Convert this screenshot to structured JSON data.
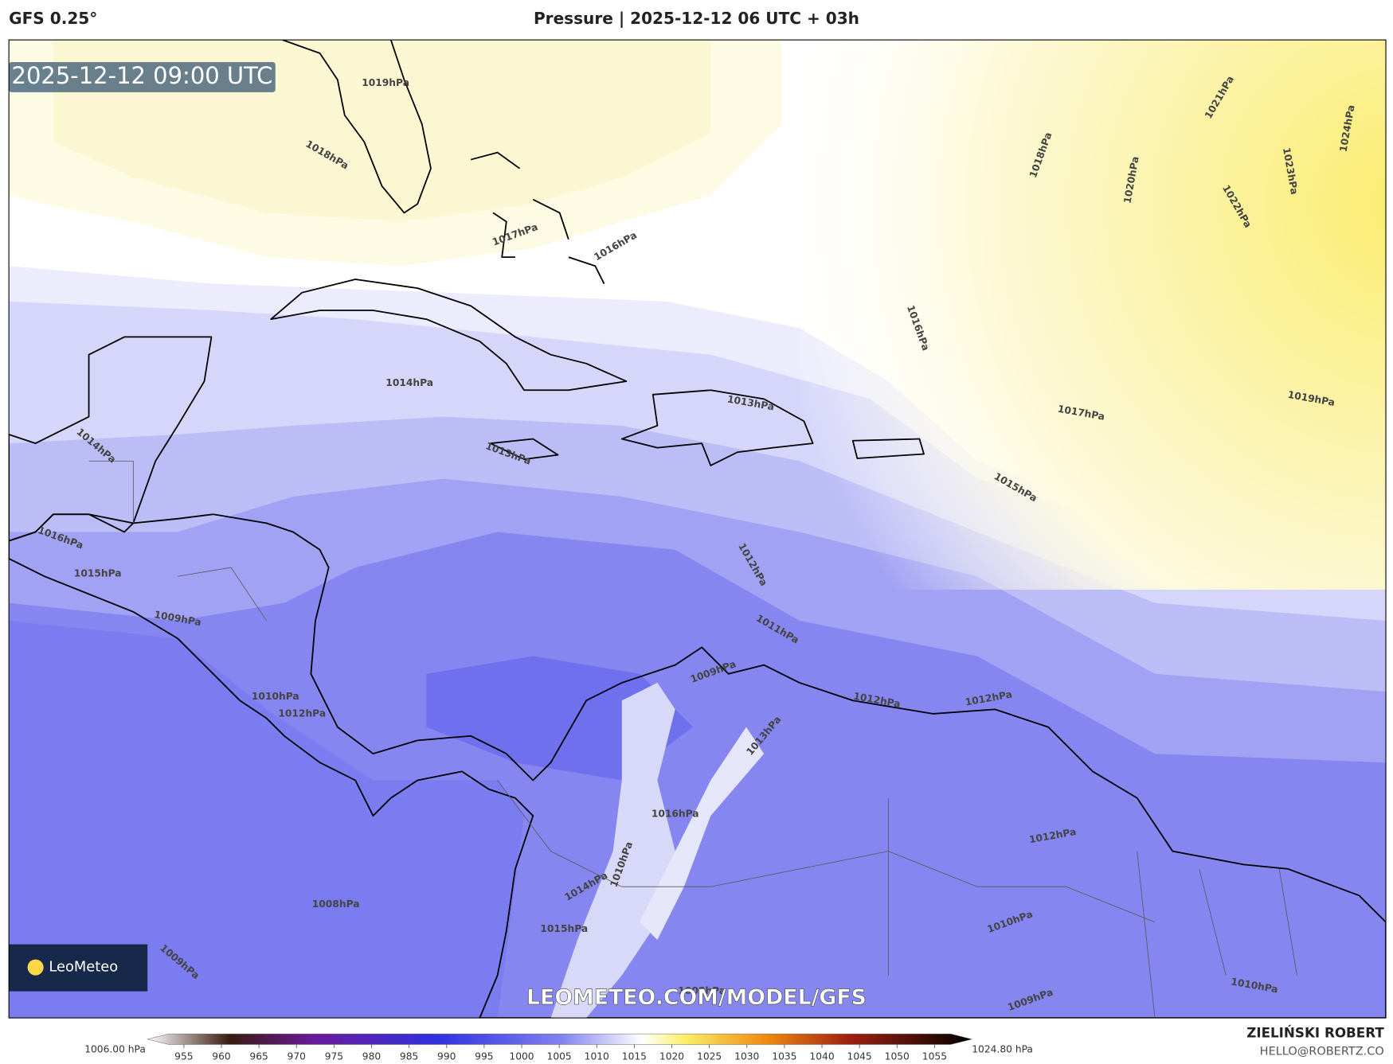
{
  "header": {
    "model": "GFS 0.25°",
    "title": "Pressure | 2025-12-12 06 UTC + 03h"
  },
  "map": {
    "timestamp": "2025-12-12 09:00 UTC",
    "watermark": "LEOMETEO.COM/MODEL/GFS",
    "logo": "LeoMeteo",
    "contour_labels": [
      "1019hPa",
      "1018hPa",
      "1017hPa",
      "1016hPa",
      "1014hPa",
      "1014hPa",
      "1013hPa",
      "1013hPa",
      "1016hPa",
      "1015hPa",
      "1009hPa",
      "1010hPa",
      "1012hPa",
      "1012hPa",
      "1011hPa",
      "1009hPa",
      "1012hPa",
      "1012hPa",
      "1013hPa",
      "1012hPa",
      "1010hPa",
      "1008hPa",
      "1009hPa",
      "1010hPa",
      "1009hPa",
      "1016hPa",
      "1017hPa",
      "1018hPa",
      "1020hPa",
      "1021hPa",
      "1022hPa",
      "1023hPa",
      "1024hPa",
      "1019hPa",
      "1015hPa",
      "1015hPa",
      "1014hPa",
      "1010hPa",
      "1016hPa",
      "1008hPa"
    ]
  },
  "colorbar": {
    "min_label": "1006.00 hPa",
    "max_label": "1024.80 hPa",
    "ticks": [
      955,
      960,
      965,
      970,
      975,
      980,
      985,
      990,
      995,
      1000,
      1005,
      1010,
      1015,
      1020,
      1025,
      1030,
      1035,
      1040,
      1045,
      1050,
      1055
    ]
  },
  "footer": {
    "author": "ZIELIŃSKI ROBERT",
    "email": "HELLO@ROBERTZ.CO"
  }
}
